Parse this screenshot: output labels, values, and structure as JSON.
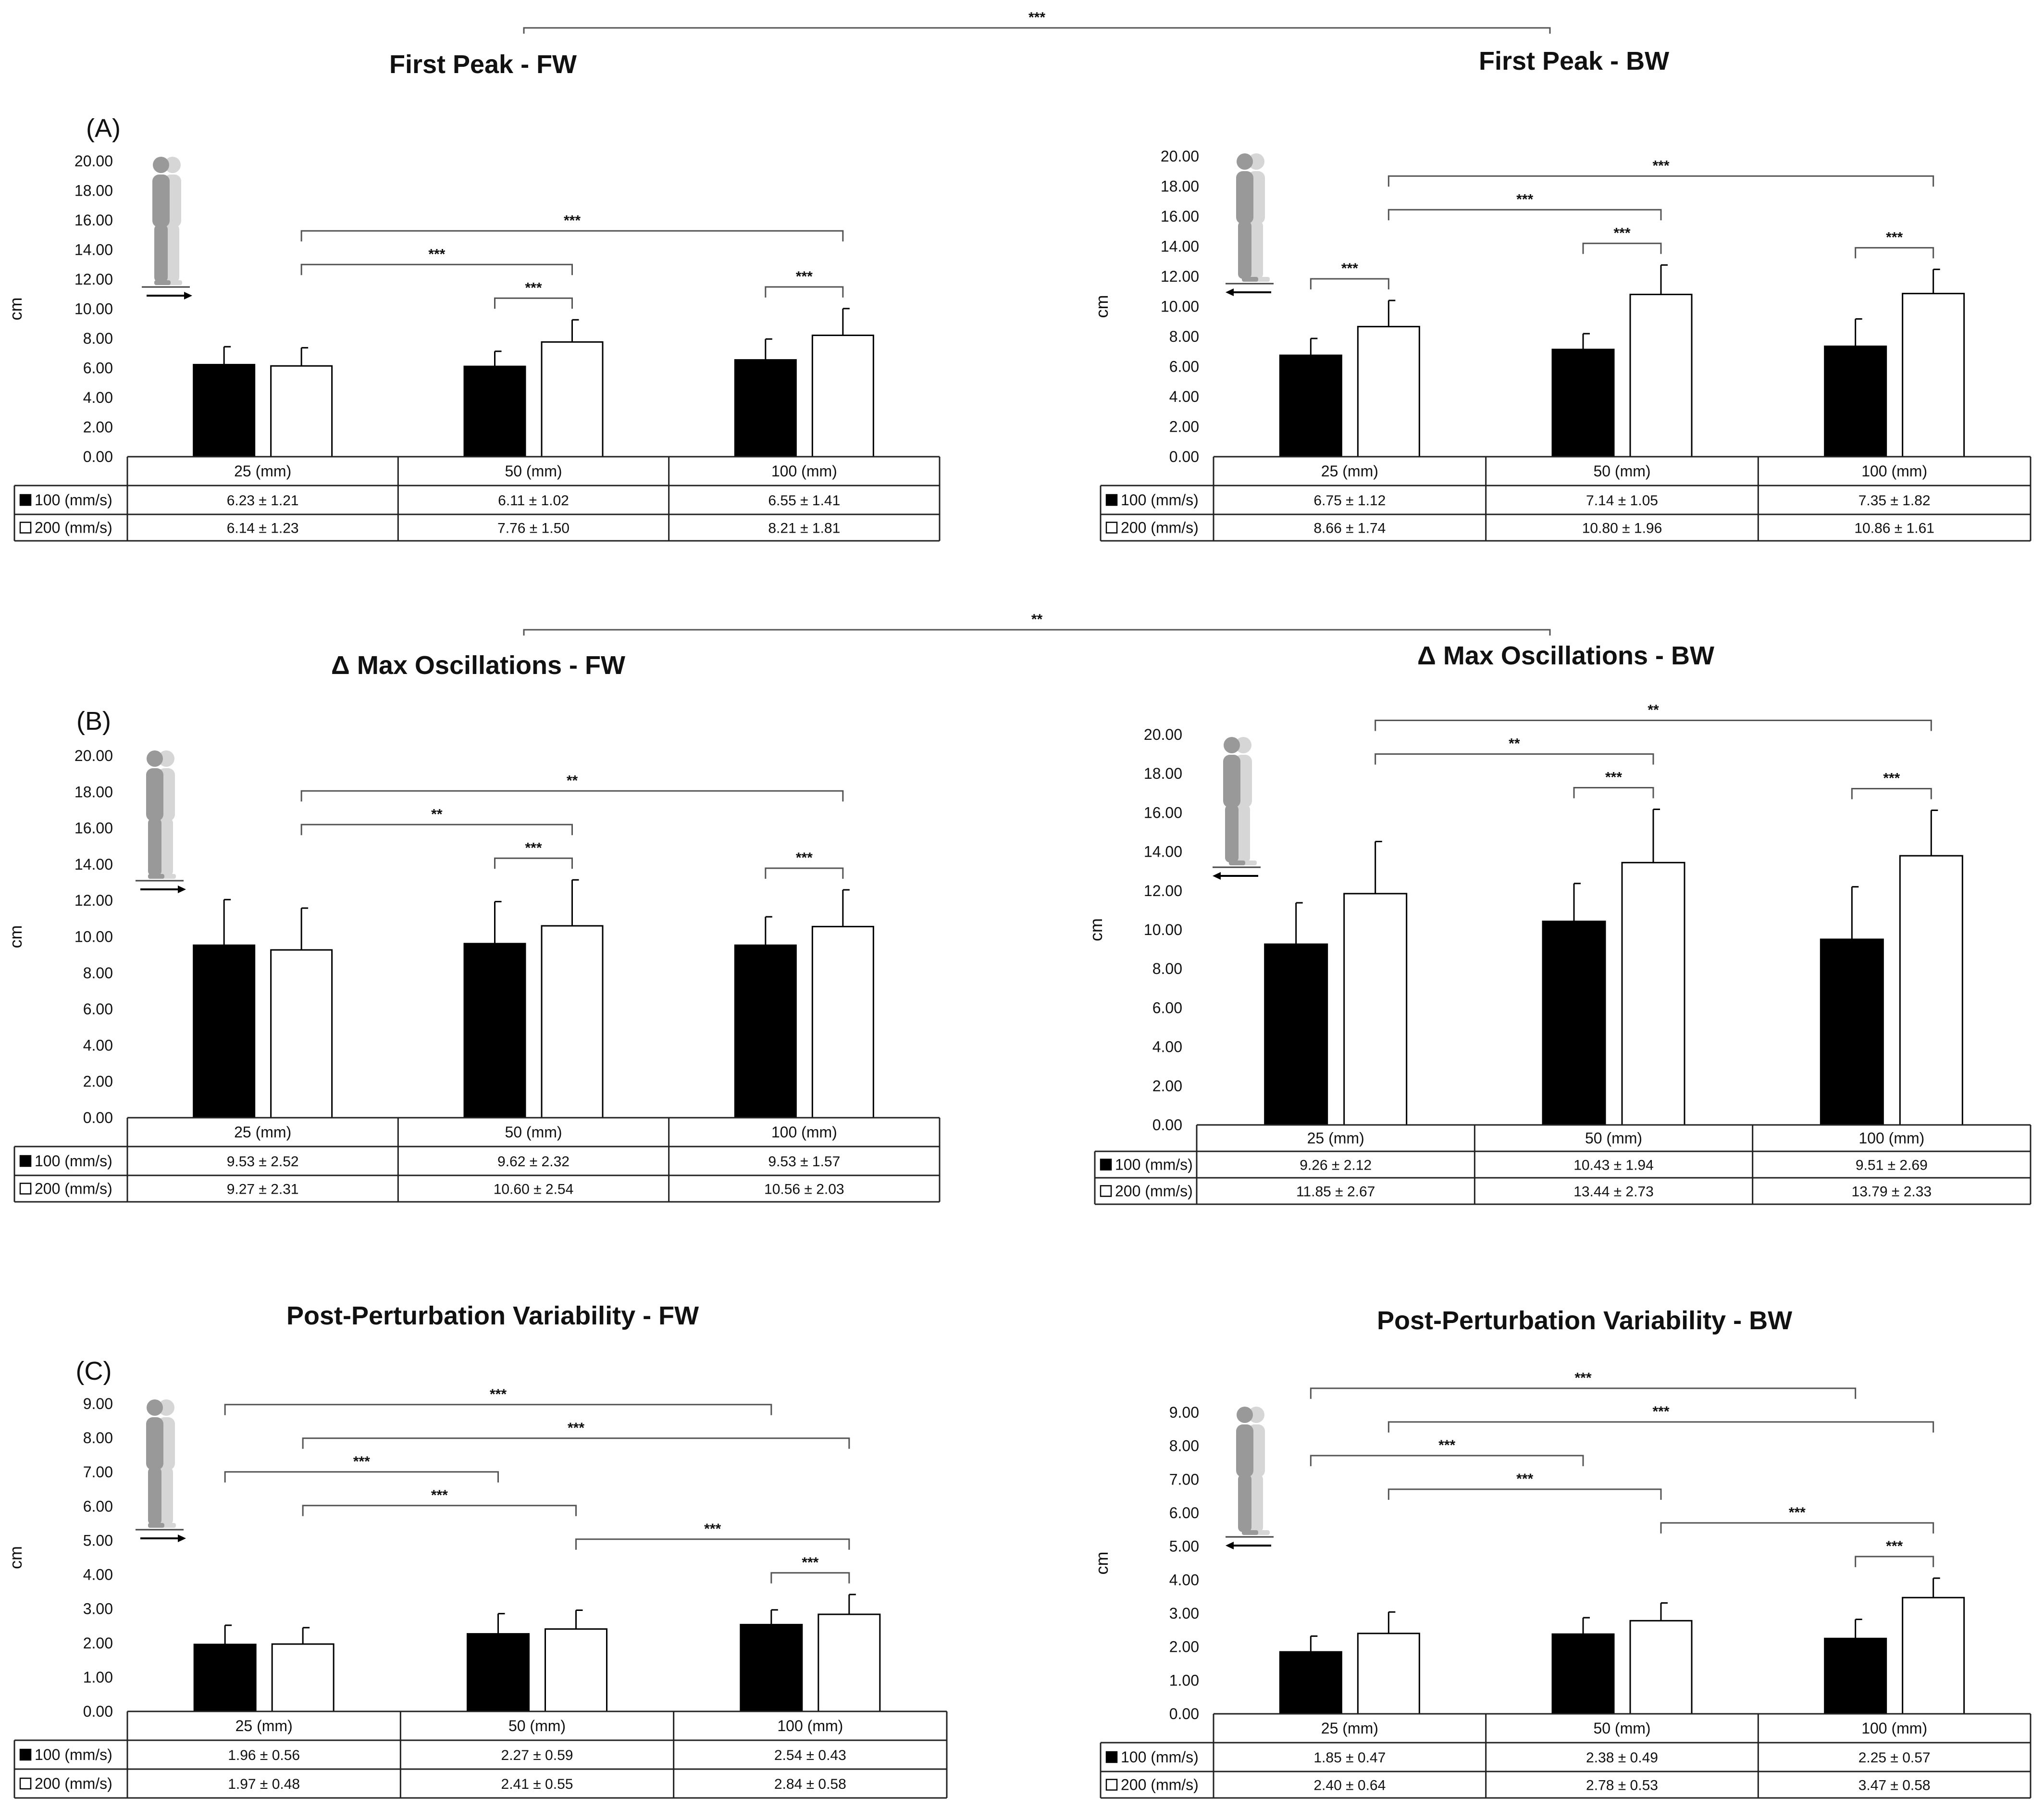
{
  "figure": {
    "panel_labels": [
      "(A)",
      "(B)",
      "(C)"
    ]
  },
  "chart_data": [
    {
      "id": "A_FW",
      "type": "bar",
      "panel": "(A)",
      "title": "First Peak  - FW",
      "ylabel": "cm",
      "ylim": [
        0,
        20
      ],
      "ytick_step": 2,
      "categories": [
        "25 (mm)",
        "50 (mm)",
        "100 (mm)"
      ],
      "series": [
        {
          "name": "100 (mm/s)",
          "color": "#000000",
          "values": [
            6.23,
            6.11,
            6.55
          ],
          "sd": [
            1.21,
            1.02,
            1.41
          ],
          "labels": [
            "6.23 ± 1.21",
            "6.11 ± 1.02",
            "6.55 ± 1.41"
          ]
        },
        {
          "name": "200 (mm/s)",
          "color": "#ffffff",
          "values": [
            6.14,
            7.76,
            8.21
          ],
          "sd": [
            1.23,
            1.5,
            1.81
          ],
          "labels": [
            "6.14 ± 1.23",
            "7.76 ± 1.50",
            "8.21 ± 1.81"
          ]
        }
      ],
      "significance": [
        {
          "from": [
            0,
            1
          ],
          "to": [
            2,
            1
          ],
          "label": "***"
        },
        {
          "from": [
            0,
            1
          ],
          "to": [
            1,
            1
          ],
          "label": "***"
        },
        {
          "from": [
            1,
            0
          ],
          "to": [
            1,
            1
          ],
          "label": "***"
        },
        {
          "from": [
            2,
            0
          ],
          "to": [
            2,
            1
          ],
          "label": "***"
        }
      ]
    },
    {
      "id": "A_BW",
      "type": "bar",
      "title": "First Peak  - BW",
      "ylabel": "cm",
      "ylim": [
        0,
        20
      ],
      "ytick_step": 2,
      "categories": [
        "25 (mm)",
        "50 (mm)",
        "100 (mm)"
      ],
      "series": [
        {
          "name": "100 (mm/s)",
          "color": "#000000",
          "values": [
            6.75,
            7.14,
            7.35
          ],
          "sd": [
            1.12,
            1.05,
            1.82
          ],
          "labels": [
            "6.75 ± 1.12",
            "7.14 ± 1.05",
            "7.35 ± 1.82"
          ]
        },
        {
          "name": "200 (mm/s)",
          "color": "#ffffff",
          "values": [
            8.66,
            10.8,
            10.86
          ],
          "sd": [
            1.74,
            1.96,
            1.61
          ],
          "labels": [
            "8.66 ± 1.74",
            "10.80 ± 1.96",
            "10.86 ± 1.61"
          ]
        }
      ],
      "significance": [
        {
          "from": [
            0,
            1
          ],
          "to": [
            2,
            1
          ],
          "label": "***"
        },
        {
          "from": [
            0,
            1
          ],
          "to": [
            1,
            1
          ],
          "label": "***"
        },
        {
          "from": [
            0,
            0
          ],
          "to": [
            0,
            1
          ],
          "label": "***"
        },
        {
          "from": [
            1,
            0
          ],
          "to": [
            1,
            1
          ],
          "label": "***"
        },
        {
          "from": [
            2,
            0
          ],
          "to": [
            2,
            1
          ],
          "label": "***"
        }
      ]
    },
    {
      "id": "B_FW",
      "type": "bar",
      "panel": "(B)",
      "title": "Δ Max Oscillations  - FW",
      "ylabel": "cm",
      "ylim": [
        0,
        20
      ],
      "ytick_step": 2,
      "categories": [
        "25 (mm)",
        "50 (mm)",
        "100 (mm)"
      ],
      "series": [
        {
          "name": "100 (mm/s)",
          "color": "#000000",
          "values": [
            9.53,
            9.62,
            9.53
          ],
          "sd": [
            2.52,
            2.32,
            1.57
          ],
          "labels": [
            "9.53 ± 2.52",
            "9.62 ± 2.32",
            "9.53 ± 1.57"
          ]
        },
        {
          "name": "200 (mm/s)",
          "color": "#ffffff",
          "values": [
            9.27,
            10.6,
            10.56
          ],
          "sd": [
            2.31,
            2.54,
            2.03
          ],
          "labels": [
            "9.27 ± 2.31",
            "10.60 ± 2.54",
            "10.56 ± 2.03"
          ]
        }
      ],
      "significance": [
        {
          "from": [
            0,
            1
          ],
          "to": [
            2,
            1
          ],
          "label": "**"
        },
        {
          "from": [
            0,
            1
          ],
          "to": [
            1,
            1
          ],
          "label": "**"
        },
        {
          "from": [
            1,
            0
          ],
          "to": [
            1,
            1
          ],
          "label": "***"
        },
        {
          "from": [
            2,
            0
          ],
          "to": [
            2,
            1
          ],
          "label": "***"
        }
      ]
    },
    {
      "id": "B_BW",
      "type": "bar",
      "title": "Δ Max Oscillations  - BW",
      "ylabel": "cm",
      "ylim": [
        0,
        20
      ],
      "ytick_step": 2,
      "categories": [
        "25 (mm)",
        "50 (mm)",
        "100 (mm)"
      ],
      "series": [
        {
          "name": "100 (mm/s)",
          "color": "#000000",
          "values": [
            9.26,
            10.43,
            9.51
          ],
          "sd": [
            2.12,
            1.94,
            2.69
          ],
          "labels": [
            "9.26 ± 2.12",
            "10.43 ± 1.94",
            "9.51 ± 2.69"
          ]
        },
        {
          "name": "200 (mm/s)",
          "color": "#ffffff",
          "values": [
            11.85,
            13.44,
            13.79
          ],
          "sd": [
            2.67,
            2.73,
            2.33
          ],
          "labels": [
            "11.85 ± 2.67",
            "13.44 ± 2.73",
            "13.79 ± 2.33"
          ]
        }
      ],
      "significance": [
        {
          "from": [
            0,
            1
          ],
          "to": [
            2,
            1
          ],
          "label": "**"
        },
        {
          "from": [
            0,
            1
          ],
          "to": [
            1,
            1
          ],
          "label": "**"
        },
        {
          "from": [
            1,
            0
          ],
          "to": [
            1,
            1
          ],
          "label": "***"
        },
        {
          "from": [
            2,
            0
          ],
          "to": [
            2,
            1
          ],
          "label": "***"
        }
      ]
    },
    {
      "id": "C_FW",
      "type": "bar",
      "panel": "(C)",
      "title": "Post-Perturbation Variability  - FW",
      "ylabel": "cm",
      "ylim": [
        0,
        9
      ],
      "ytick_step": 1,
      "categories": [
        "25 (mm)",
        "50 (mm)",
        "100 (mm)"
      ],
      "series": [
        {
          "name": "100 (mm/s)",
          "color": "#000000",
          "values": [
            1.96,
            2.27,
            2.54
          ],
          "sd": [
            0.56,
            0.59,
            0.43
          ],
          "labels": [
            "1.96 ± 0.56",
            "2.27 ± 0.59",
            "2.54 ± 0.43"
          ]
        },
        {
          "name": "200 (mm/s)",
          "color": "#ffffff",
          "values": [
            1.97,
            2.41,
            2.84
          ],
          "sd": [
            0.48,
            0.55,
            0.58
          ],
          "labels": [
            "1.97 ± 0.48",
            "2.41 ± 0.55",
            "2.84 ± 0.58"
          ]
        }
      ],
      "significance": [
        {
          "from": [
            1,
            1
          ],
          "to": [
            2,
            1
          ],
          "label": "***"
        },
        {
          "from": [
            0,
            1
          ],
          "to": [
            2,
            1
          ],
          "label": "***"
        },
        {
          "from": [
            0,
            1
          ],
          "to": [
            1,
            1
          ],
          "label": "***"
        },
        {
          "from": [
            0,
            0
          ],
          "to": [
            2,
            0
          ],
          "label": "***"
        },
        {
          "from": [
            0,
            0
          ],
          "to": [
            1,
            0
          ],
          "label": "***"
        },
        {
          "from": [
            2,
            0
          ],
          "to": [
            2,
            1
          ],
          "label": "***"
        }
      ]
    },
    {
      "id": "C_BW",
      "type": "bar",
      "title": "Post-Perturbation Variability  - BW",
      "ylabel": "cm",
      "ylim": [
        0,
        9
      ],
      "ytick_step": 1,
      "categories": [
        "25 (mm)",
        "50 (mm)",
        "100 (mm)"
      ],
      "series": [
        {
          "name": "100 (mm/s)",
          "color": "#000000",
          "values": [
            1.85,
            2.38,
            2.25
          ],
          "sd": [
            0.47,
            0.49,
            0.57
          ],
          "labels": [
            "1.85 ± 0.47",
            "2.38 ± 0.49",
            "2.25 ± 0.57"
          ]
        },
        {
          "name": "200 (mm/s)",
          "color": "#ffffff",
          "values": [
            2.4,
            2.78,
            3.47
          ],
          "sd": [
            0.64,
            0.53,
            0.58
          ],
          "labels": [
            "2.40 ± 0.64",
            "2.78 ± 0.53",
            "3.47 ± 0.58"
          ]
        }
      ],
      "significance": [
        {
          "from": [
            1,
            1
          ],
          "to": [
            2,
            1
          ],
          "label": "***"
        },
        {
          "from": [
            0,
            1
          ],
          "to": [
            2,
            1
          ],
          "label": "***"
        },
        {
          "from": [
            0,
            1
          ],
          "to": [
            1,
            1
          ],
          "label": "***"
        },
        {
          "from": [
            0,
            0
          ],
          "to": [
            2,
            0
          ],
          "label": "***"
        },
        {
          "from": [
            0,
            0
          ],
          "to": [
            1,
            0
          ],
          "label": "***"
        },
        {
          "from": [
            2,
            0
          ],
          "to": [
            2,
            1
          ],
          "label": "***"
        }
      ]
    }
  ],
  "cross_comparisons": [
    {
      "between": [
        "A_FW",
        "A_BW"
      ],
      "label": "***"
    },
    {
      "between": [
        "B_FW",
        "B_BW"
      ],
      "label": "**"
    }
  ]
}
